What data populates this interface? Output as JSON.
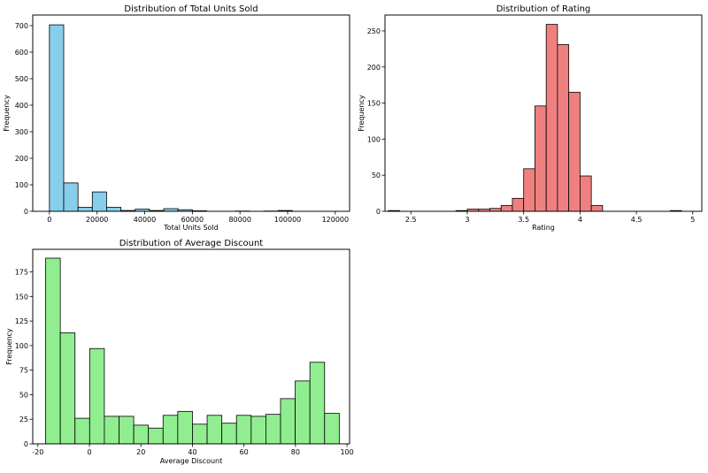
{
  "chart_data": [
    {
      "type": "bar",
      "title": "Distribution of Total Units Sold",
      "xlabel": "Total Units Sold",
      "ylabel": "Frequency",
      "xlim": [
        -7000,
        126000
      ],
      "ylim": [
        0,
        740
      ],
      "xticks": [
        0,
        20000,
        40000,
        60000,
        80000,
        100000,
        120000
      ],
      "yticks": [
        0,
        100,
        200,
        300,
        400,
        500,
        600,
        700
      ],
      "bin_edges": [
        0,
        6000,
        12000,
        18000,
        24000,
        30000,
        36000,
        42000,
        48000,
        54000,
        60000,
        66000,
        72000,
        78000,
        84000,
        90000,
        96000,
        102000,
        108000,
        114000,
        120000
      ],
      "values": [
        703,
        107,
        15,
        73,
        15,
        3,
        8,
        3,
        10,
        6,
        2,
        0,
        0,
        1,
        0,
        1,
        3,
        0,
        0,
        0
      ],
      "color": "#87ceeb"
    },
    {
      "type": "bar",
      "title": "Distribution of Rating",
      "xlabel": "Rating",
      "ylabel": "Frequency",
      "xlim": [
        2.27,
        5.08
      ],
      "ylim": [
        0,
        272
      ],
      "xticks": [
        2.5,
        3.0,
        3.5,
        4.0,
        4.5,
        5.0
      ],
      "yticks": [
        0,
        50,
        100,
        150,
        200,
        250
      ],
      "bin_edges": [
        2.3,
        2.4,
        2.5,
        2.6,
        2.7,
        2.8,
        2.9,
        3.0,
        3.1,
        3.2,
        3.3,
        3.4,
        3.5,
        3.6,
        3.7,
        3.8,
        3.9,
        4.0,
        4.1,
        4.2,
        4.3,
        4.4,
        4.5,
        4.6,
        4.7,
        4.8,
        4.9,
        5.0
      ],
      "values": [
        1,
        0,
        0,
        0,
        0,
        0,
        1,
        3,
        3,
        4,
        8,
        18,
        59,
        146,
        259,
        231,
        165,
        49,
        8,
        0,
        0,
        0,
        0,
        0,
        0,
        1,
        0
      ],
      "color": "#f08080"
    },
    {
      "type": "bar",
      "title": "Distribution of Average Discount",
      "xlabel": "Average Discount",
      "ylabel": "Frequency",
      "xlim": [
        -22,
        101
      ],
      "ylim": [
        0,
        198
      ],
      "xticks": [
        -20,
        0,
        20,
        40,
        60,
        80,
        100
      ],
      "yticks": [
        0,
        25,
        50,
        75,
        100,
        125,
        150,
        175
      ],
      "bin_edges": [
        -17,
        -11.3,
        -5.6,
        0.1,
        5.8,
        11.5,
        17.2,
        22.9,
        28.6,
        34.3,
        40.0,
        45.7,
        51.4,
        57.1,
        62.8,
        68.5,
        74.2,
        79.9,
        85.6,
        91.3,
        97.0
      ],
      "values": [
        189,
        113,
        26,
        97,
        28,
        28,
        19,
        16,
        29,
        33,
        20,
        29,
        21,
        29,
        28,
        30,
        46,
        64,
        83,
        31
      ],
      "color": "#90ee90"
    }
  ]
}
